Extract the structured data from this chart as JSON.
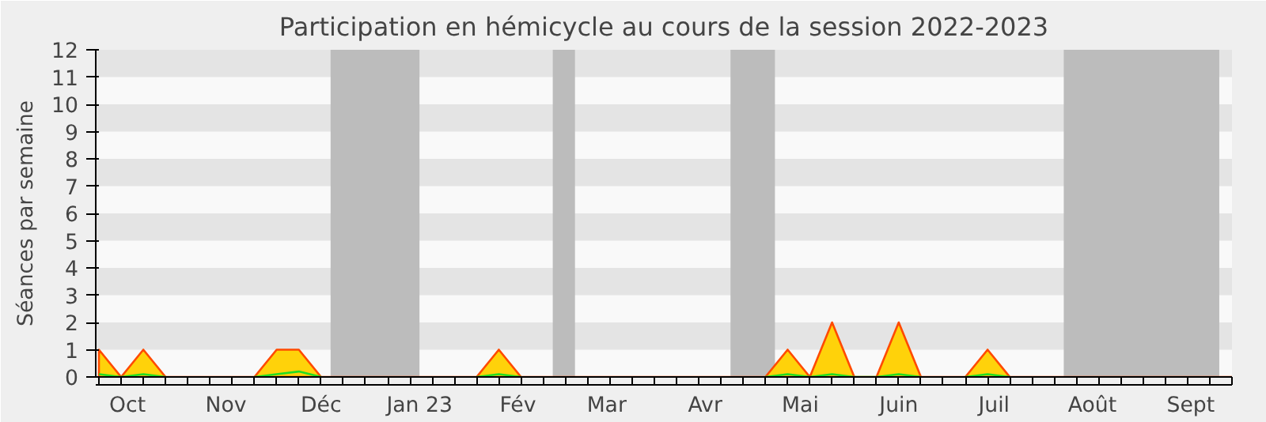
{
  "chart_data": {
    "type": "area",
    "title": "Participation en hémicycle au cours de la session 2022-2023",
    "ylabel": "Séances par semaine",
    "x": [
      "2022-09-22",
      "2022-09-29",
      "2022-10-06",
      "2022-10-13",
      "2022-10-20",
      "2022-10-27",
      "2022-11-03",
      "2022-11-10",
      "2022-11-17",
      "2022-11-24",
      "2022-12-01",
      "2022-12-08",
      "2022-12-15",
      "2022-12-22",
      "2022-12-29",
      "2023-01-05",
      "2023-01-12",
      "2023-01-19",
      "2023-01-26",
      "2023-02-02",
      "2023-02-09",
      "2023-02-16",
      "2023-02-23",
      "2023-03-02",
      "2023-03-09",
      "2023-03-16",
      "2023-03-23",
      "2023-03-30",
      "2023-04-06",
      "2023-04-13",
      "2023-04-20",
      "2023-04-27",
      "2023-05-04",
      "2023-05-11",
      "2023-05-18",
      "2023-05-25",
      "2023-06-01",
      "2023-06-08",
      "2023-06-15",
      "2023-06-22",
      "2023-06-29",
      "2023-07-06",
      "2023-07-13",
      "2023-07-20",
      "2023-07-27",
      "2023-08-03",
      "2023-08-10",
      "2023-08-17",
      "2023-08-24",
      "2023-08-31",
      "2023-09-07",
      "2023-09-14"
    ],
    "series": [
      {
        "color": "#ffd20a",
        "values": [
          1,
          0,
          1,
          0,
          0,
          0,
          0,
          0,
          1,
          1,
          0,
          0,
          0,
          0,
          0,
          0,
          0,
          0,
          1,
          0,
          0,
          0,
          0,
          0,
          0,
          0,
          0,
          0,
          0,
          0,
          0,
          1,
          0,
          2,
          0,
          0,
          2,
          0,
          0,
          0,
          1,
          0,
          0,
          0,
          0,
          0,
          0,
          0,
          0,
          0,
          0,
          0
        ]
      },
      {
        "type": "line",
        "color": "#22dd22",
        "values": [
          0.1,
          0,
          0.1,
          0,
          null,
          null,
          null,
          0,
          0.1,
          0.2,
          0,
          null,
          null,
          null,
          null,
          null,
          null,
          0,
          0.1,
          0,
          null,
          null,
          null,
          null,
          null,
          null,
          null,
          null,
          null,
          null,
          0,
          0.1,
          0,
          0.1,
          0,
          0,
          0.1,
          0,
          null,
          0,
          0.1,
          0,
          null,
          null,
          null,
          null,
          null,
          null,
          null,
          null,
          null,
          null
        ]
      }
    ],
    "xlim": [
      "2022-09-21",
      "2023-09-14"
    ],
    "ylim": [
      0,
      12
    ],
    "yticks": [
      0,
      1,
      2,
      3,
      4,
      5,
      6,
      7,
      8,
      9,
      10,
      11,
      12
    ],
    "xticks": [
      {
        "value": "2022-10-01",
        "label": "Oct"
      },
      {
        "value": "2022-11-01",
        "label": "Nov"
      },
      {
        "value": "2022-12-01",
        "label": "Déc"
      },
      {
        "value": "2023-01-01",
        "label": "Jan 23"
      },
      {
        "value": "2023-02-01",
        "label": "Fév"
      },
      {
        "value": "2023-03-01",
        "label": "Mar"
      },
      {
        "value": "2023-04-01",
        "label": "Avr"
      },
      {
        "value": "2023-05-01",
        "label": "Mai"
      },
      {
        "value": "2023-06-01",
        "label": "Juin"
      },
      {
        "value": "2023-07-01",
        "label": "Juil"
      },
      {
        "value": "2023-08-01",
        "label": "Août"
      },
      {
        "value": "2023-09-01",
        "label": "Sept"
      },
      {
        "value": "2022-09-22",
        "label": null
      },
      {
        "value": "2022-09-29",
        "label": null
      },
      {
        "value": "2022-10-06",
        "label": null
      },
      {
        "value": "2022-10-13",
        "label": null
      },
      {
        "value": "2022-10-20",
        "label": null
      },
      {
        "value": "2022-10-27",
        "label": null
      },
      {
        "value": "2022-11-03",
        "label": null
      },
      {
        "value": "2022-11-10",
        "label": null
      },
      {
        "value": "2022-11-17",
        "label": null
      },
      {
        "value": "2022-11-24",
        "label": null
      },
      {
        "value": "2022-12-01",
        "label": null
      },
      {
        "value": "2022-12-08",
        "label": null
      },
      {
        "value": "2022-12-15",
        "label": null
      },
      {
        "value": "2022-12-22",
        "label": null
      },
      {
        "value": "2022-12-29",
        "label": null
      },
      {
        "value": "2023-01-05",
        "label": null
      },
      {
        "value": "2023-01-12",
        "label": null
      },
      {
        "value": "2023-01-19",
        "label": null
      },
      {
        "value": "2023-01-26",
        "label": null
      },
      {
        "value": "2023-02-02",
        "label": null
      },
      {
        "value": "2023-02-09",
        "label": null
      },
      {
        "value": "2023-02-16",
        "label": null
      },
      {
        "value": "2023-02-23",
        "label": null
      },
      {
        "value": "2023-03-02",
        "label": null
      },
      {
        "value": "2023-03-09",
        "label": null
      },
      {
        "value": "2023-03-16",
        "label": null
      },
      {
        "value": "2023-03-23",
        "label": null
      },
      {
        "value": "2023-03-30",
        "label": null
      },
      {
        "value": "2023-04-06",
        "label": null
      },
      {
        "value": "2023-04-13",
        "label": null
      },
      {
        "value": "2023-04-20",
        "label": null
      },
      {
        "value": "2023-04-27",
        "label": null
      },
      {
        "value": "2023-05-04",
        "label": null
      },
      {
        "value": "2023-05-11",
        "label": null
      },
      {
        "value": "2023-05-18",
        "label": null
      },
      {
        "value": "2023-05-25",
        "label": null
      },
      {
        "value": "2023-06-01",
        "label": null
      },
      {
        "value": "2023-06-08",
        "label": null
      },
      {
        "value": "2023-06-15",
        "label": null
      },
      {
        "value": "2023-06-22",
        "label": null
      },
      {
        "value": "2023-06-29",
        "label": null
      },
      {
        "value": "2023-07-06",
        "label": null
      },
      {
        "value": "2023-07-13",
        "label": null
      },
      {
        "value": "2023-07-20",
        "label": null
      },
      {
        "value": "2023-07-27",
        "label": null
      },
      {
        "value": "2023-08-03",
        "label": null
      },
      {
        "value": "2023-08-10",
        "label": null
      },
      {
        "value": "2023-08-17",
        "label": null
      },
      {
        "value": "2023-08-24",
        "label": null
      },
      {
        "value": "2023-08-31",
        "label": null
      },
      {
        "value": "2023-09-07",
        "label": null
      },
      {
        "value": "2023-09-14",
        "label": null
      }
    ],
    "bands": [
      {
        "axis": "y",
        "from": 1,
        "to": 2,
        "color": "#e4e4e4"
      },
      {
        "axis": "y",
        "from": 3,
        "to": 4,
        "color": "#e4e4e4"
      },
      {
        "axis": "y",
        "from": 5,
        "to": 6,
        "color": "#e4e4e4"
      },
      {
        "axis": "y",
        "from": 7,
        "to": 8,
        "color": "#e4e4e4"
      },
      {
        "axis": "y",
        "from": 9,
        "to": 10,
        "color": "#e4e4e4"
      },
      {
        "axis": "y",
        "from": 11,
        "to": 12,
        "color": "#e4e4e4"
      },
      {
        "axis": "x",
        "from": "2022-12-04",
        "to": "2023-01-01",
        "color": "#bcbcbc"
      },
      {
        "axis": "x",
        "from": "2023-02-12",
        "to": "2023-02-19",
        "color": "#bcbcbc"
      },
      {
        "axis": "x",
        "from": "2023-04-09",
        "to": "2023-04-23",
        "color": "#bcbcbc"
      },
      {
        "axis": "x",
        "from": "2023-07-23",
        "to": "2023-09-10",
        "color": "#bcbcbc"
      }
    ]
  }
}
